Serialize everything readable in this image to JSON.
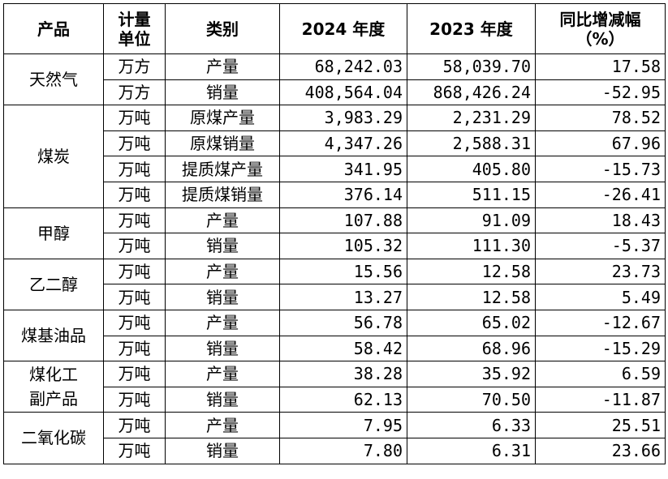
{
  "headers": [
    "产品",
    "计量单位",
    "类别",
    "2024 年度",
    "2023 年度",
    "同比增减幅（%）"
  ],
  "headers_display": {
    "product": "产品",
    "unit_line1": "计量",
    "unit_line2": "单位",
    "category": "类别",
    "y2024": "2024 年度",
    "y2023": "2023 年度",
    "yoy_line1": "同比增减幅",
    "yoy_line2": "（%）"
  },
  "groups": [
    {
      "product": "天然气",
      "rows": [
        {
          "unit": "万方",
          "category": "产量",
          "y2024": "68,242.03",
          "y2023": "58,039.70",
          "yoy": "17.58"
        },
        {
          "unit": "万方",
          "category": "销量",
          "y2024": "408,564.04",
          "y2023": "868,426.24",
          "yoy": "-52.95"
        }
      ]
    },
    {
      "product": "煤炭",
      "rows": [
        {
          "unit": "万吨",
          "category": "原煤产量",
          "y2024": "3,983.29",
          "y2023": "2,231.29",
          "yoy": "78.52"
        },
        {
          "unit": "万吨",
          "category": "原煤销量",
          "y2024": "4,347.26",
          "y2023": "2,588.31",
          "yoy": "67.96"
        },
        {
          "unit": "万吨",
          "category": "提质煤产量",
          "y2024": "341.95",
          "y2023": "405.80",
          "yoy": "-15.73"
        },
        {
          "unit": "万吨",
          "category": "提质煤销量",
          "y2024": "376.14",
          "y2023": "511.15",
          "yoy": "-26.41"
        }
      ]
    },
    {
      "product": "甲醇",
      "rows": [
        {
          "unit": "万吨",
          "category": "产量",
          "y2024": "107.88",
          "y2023": "91.09",
          "yoy": "18.43"
        },
        {
          "unit": "万吨",
          "category": "销量",
          "y2024": "105.32",
          "y2023": "111.30",
          "yoy": "-5.37"
        }
      ]
    },
    {
      "product": "乙二醇",
      "rows": [
        {
          "unit": "万吨",
          "category": "产量",
          "y2024": "15.56",
          "y2023": "12.58",
          "yoy": "23.73"
        },
        {
          "unit": "万吨",
          "category": "销量",
          "y2024": "13.27",
          "y2023": "12.58",
          "yoy": "5.49"
        }
      ]
    },
    {
      "product": "煤基油品",
      "rows": [
        {
          "unit": "万吨",
          "category": "产量",
          "y2024": "56.78",
          "y2023": "65.02",
          "yoy": "-12.67"
        },
        {
          "unit": "万吨",
          "category": "销量",
          "y2024": "58.42",
          "y2023": "68.96",
          "yoy": "-15.29"
        }
      ]
    },
    {
      "product": "煤化工副产品",
      "product_line1": "煤化工",
      "product_line2": "副产品",
      "rows": [
        {
          "unit": "万吨",
          "category": "产量",
          "y2024": "38.28",
          "y2023": "35.92",
          "yoy": "6.59"
        },
        {
          "unit": "万吨",
          "category": "销量",
          "y2024": "62.13",
          "y2023": "70.50",
          "yoy": "-11.87"
        }
      ]
    },
    {
      "product": "二氧化碳",
      "rows": [
        {
          "unit": "万吨",
          "category": "产量",
          "y2024": "7.95",
          "y2023": "6.33",
          "yoy": "25.51"
        },
        {
          "unit": "万吨",
          "category": "销量",
          "y2024": "7.80",
          "y2023": "6.31",
          "yoy": "23.66"
        }
      ]
    }
  ]
}
